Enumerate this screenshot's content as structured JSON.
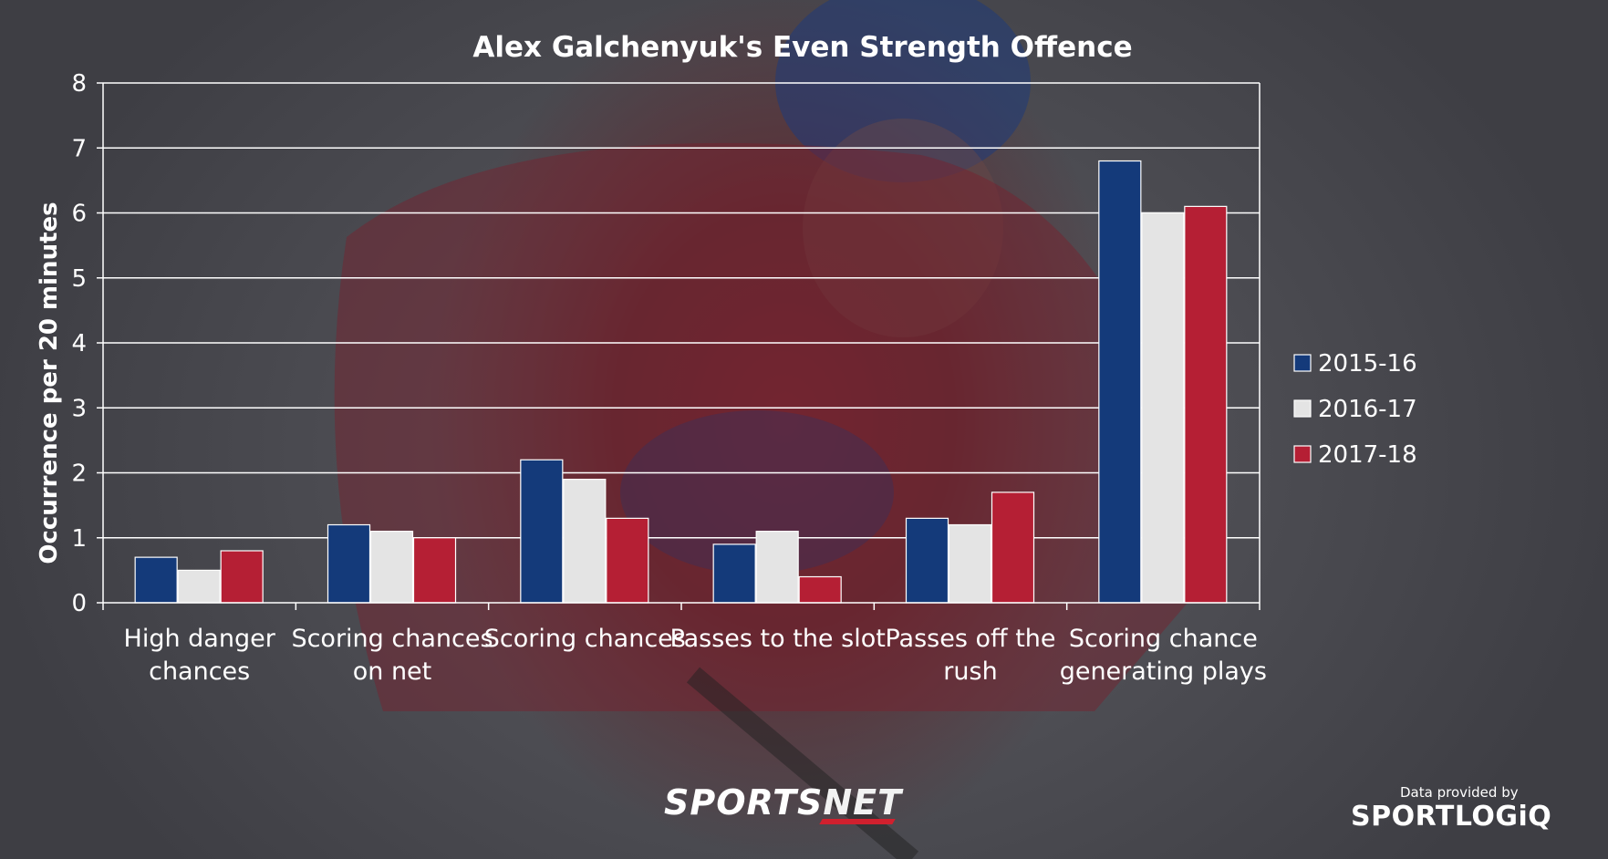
{
  "chart_data": {
    "type": "bar",
    "title": "Alex Galchenyuk's Even Strength Offence",
    "ylabel": "Occurrence per 20 minutes",
    "xlabel": "",
    "ylim": [
      0,
      8
    ],
    "yticks": [
      0,
      1,
      2,
      3,
      4,
      5,
      6,
      7,
      8
    ],
    "grid": true,
    "legend_position": "right",
    "categories": [
      [
        "High danger",
        "chances"
      ],
      [
        "Scoring chances",
        "on net"
      ],
      [
        "Scoring chances"
      ],
      [
        "Passes to the slot"
      ],
      [
        "Passes off the",
        "rush"
      ],
      [
        "Scoring chance",
        "generating plays"
      ]
    ],
    "series": [
      {
        "name": "2015-16",
        "color": "#143a7a",
        "values": [
          0.7,
          1.2,
          2.2,
          0.9,
          1.3,
          6.8
        ]
      },
      {
        "name": "2016-17",
        "color": "#e4e4e4",
        "values": [
          0.5,
          1.1,
          1.9,
          1.1,
          1.2,
          6.0
        ]
      },
      {
        "name": "2017-18",
        "color": "#b51f34",
        "values": [
          0.8,
          1.0,
          1.3,
          0.4,
          1.7,
          6.1
        ]
      }
    ]
  },
  "branding": {
    "sportsnet_a": "SPORTS",
    "sportsnet_b": "NET",
    "data_provided": "Data provided by",
    "sportlogiq": "SPORTLOGiQ"
  }
}
